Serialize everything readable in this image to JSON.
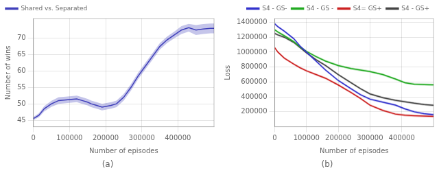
{
  "chart_data": [
    {
      "type": "line",
      "title": "(a)",
      "x_label": "Number of episodes",
      "y_label": "Number of wins",
      "xlim": [
        0,
        500000
      ],
      "ylim": [
        43,
        76
      ],
      "xticks": [
        0,
        100000,
        200000,
        300000,
        400000
      ],
      "yticks": [
        45,
        50,
        55,
        60,
        65,
        70
      ],
      "grid": true,
      "legend": "upper left",
      "x": [
        0,
        15000,
        30000,
        50000,
        70000,
        90000,
        100000,
        110000,
        120000,
        135000,
        150000,
        160000,
        175000,
        190000,
        200000,
        215000,
        230000,
        250000,
        270000,
        290000,
        310000,
        330000,
        350000,
        370000,
        390000,
        410000,
        430000,
        450000,
        470000,
        490000,
        500000
      ],
      "series": [
        {
          "name": "Shared vs. Separated",
          "color": "#4040bb",
          "values": [
            45.5,
            46.5,
            48.5,
            50,
            51,
            51.2,
            51.3,
            51.4,
            51.5,
            51.0,
            50.5,
            50.0,
            49.5,
            49.0,
            49.2,
            49.5,
            50.0,
            52.0,
            55.0,
            58.5,
            61.5,
            64.5,
            67.5,
            69.5,
            71.0,
            72.5,
            73.2,
            72.5,
            72.8,
            73.0,
            73.0
          ],
          "lower": [
            45.0,
            45.9,
            47.7,
            49.1,
            50,
            50.2,
            50.3,
            50.4,
            50.5,
            50,
            49.5,
            49,
            48.5,
            48,
            48.2,
            48.5,
            49,
            51,
            54,
            57.5,
            60.5,
            63.5,
            66.5,
            68.5,
            70,
            71.3,
            72.0,
            71.0,
            71.3,
            71.5,
            71.5
          ],
          "upper": [
            46.0,
            47.1,
            49.3,
            50.9,
            52,
            52.2,
            52.3,
            52.4,
            52.5,
            52,
            51.5,
            51,
            50.5,
            50,
            50.2,
            50.5,
            51,
            53,
            56,
            59.5,
            62.5,
            65.5,
            68.5,
            70.5,
            72,
            73.7,
            74.4,
            74.0,
            74.3,
            74.5,
            74.5
          ]
        }
      ]
    },
    {
      "type": "line",
      "title": "(b)",
      "x_label": "Number of episodes",
      "y_label": "Loss",
      "xlim": [
        0,
        500000
      ],
      "ylim": [
        0,
        1450000
      ],
      "xticks": [
        0,
        100000,
        200000,
        300000,
        400000
      ],
      "yticks": [
        200000,
        400000,
        600000,
        800000,
        1000000,
        1200000,
        1400000
      ],
      "grid": true,
      "legend": "upper right",
      "x": [
        0,
        10000,
        30000,
        60000,
        80000,
        100000,
        130000,
        160000,
        200000,
        240000,
        270000,
        300000,
        340000,
        380000,
        410000,
        440000,
        470000,
        500000
      ],
      "series": [
        {
          "name": "S4 - GS-",
          "color": "#3333cc",
          "values": [
            1380000,
            1340000,
            1280000,
            1180000,
            1080000,
            1000000,
            880000,
            760000,
            620000,
            510000,
            430000,
            370000,
            330000,
            290000,
            240000,
            200000,
            175000,
            162000
          ],
          "lower": [
            1365000,
            1325000,
            1265000,
            1165000,
            1065000,
            985000,
            865000,
            745000,
            605000,
            495000,
            415000,
            355000,
            315000,
            275000,
            225000,
            185000,
            160000,
            147000
          ],
          "upper": [
            1395000,
            1355000,
            1295000,
            1195000,
            1095000,
            1015000,
            895000,
            775000,
            635000,
            525000,
            445000,
            385000,
            345000,
            305000,
            255000,
            215000,
            190000,
            177000
          ]
        },
        {
          "name": "S4 - GS -",
          "color": "#22aa22",
          "values": [
            1300000,
            1270000,
            1220000,
            1140000,
            1070000,
            1010000,
            940000,
            880000,
            820000,
            780000,
            760000,
            740000,
            700000,
            640000,
            590000,
            570000,
            565000,
            562000
          ],
          "lower": [
            1285000,
            1255000,
            1205000,
            1125000,
            1055000,
            995000,
            925000,
            865000,
            805000,
            765000,
            745000,
            725000,
            685000,
            625000,
            575000,
            555000,
            550000,
            547000
          ],
          "upper": [
            1315000,
            1285000,
            1235000,
            1155000,
            1085000,
            1025000,
            955000,
            895000,
            835000,
            795000,
            775000,
            755000,
            715000,
            655000,
            605000,
            585000,
            580000,
            577000
          ]
        },
        {
          "name": "S4= GS+",
          "color": "#cc2222",
          "values": [
            1060000,
            1000000,
            920000,
            840000,
            790000,
            750000,
            700000,
            650000,
            560000,
            460000,
            380000,
            290000,
            220000,
            170000,
            155000,
            148000,
            143000,
            140000
          ],
          "lower": [
            1045000,
            985000,
            905000,
            825000,
            775000,
            735000,
            685000,
            635000,
            545000,
            445000,
            365000,
            275000,
            205000,
            155000,
            140000,
            133000,
            128000,
            125000
          ],
          "upper": [
            1075000,
            1015000,
            935000,
            855000,
            805000,
            765000,
            715000,
            665000,
            575000,
            475000,
            395000,
            305000,
            235000,
            185000,
            170000,
            163000,
            158000,
            155000
          ]
        },
        {
          "name": "S4 - GS+",
          "color": "#444444",
          "values": [
            1250000,
            1230000,
            1200000,
            1130000,
            1060000,
            990000,
            900000,
            820000,
            700000,
            590000,
            510000,
            440000,
            390000,
            355000,
            335000,
            315000,
            298000,
            288000
          ],
          "lower": [
            1235000,
            1215000,
            1185000,
            1115000,
            1045000,
            975000,
            885000,
            805000,
            685000,
            575000,
            495000,
            425000,
            375000,
            340000,
            320000,
            300000,
            283000,
            273000
          ],
          "upper": [
            1265000,
            1245000,
            1215000,
            1145000,
            1075000,
            1005000,
            915000,
            835000,
            715000,
            605000,
            525000,
            455000,
            405000,
            370000,
            350000,
            330000,
            313000,
            303000
          ]
        }
      ]
    }
  ]
}
